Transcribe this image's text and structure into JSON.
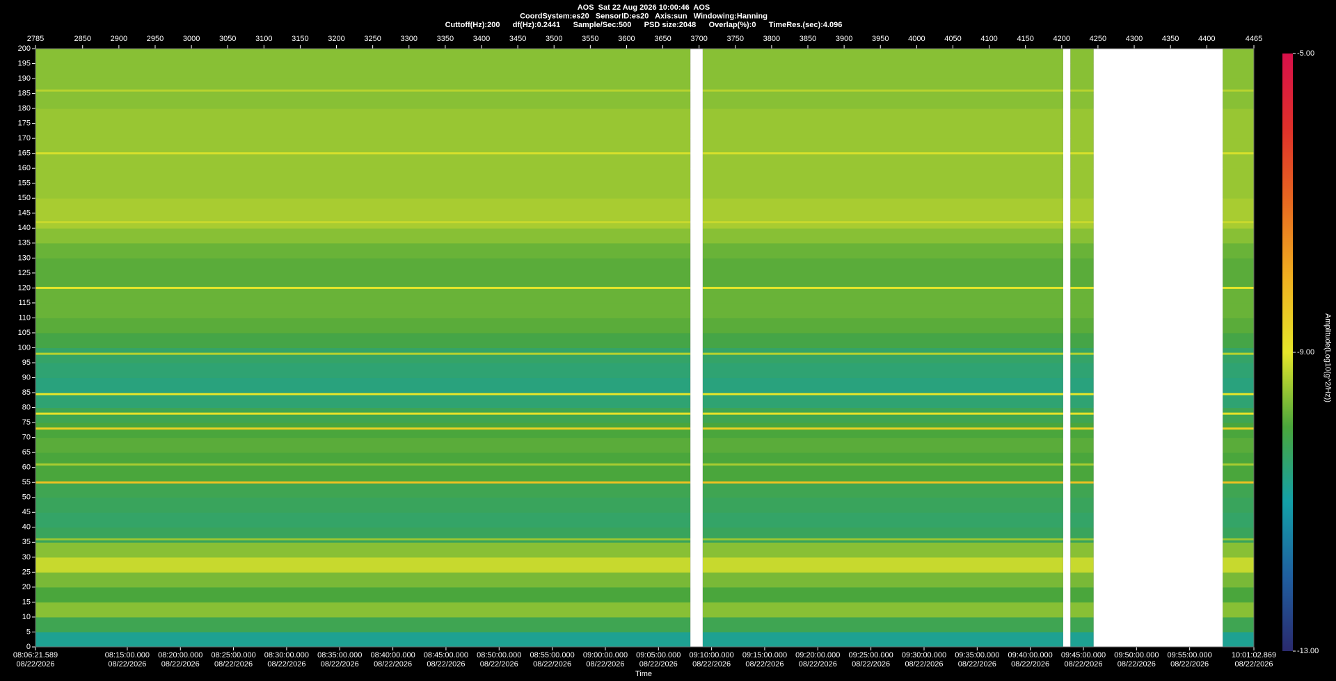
{
  "chart_data": {
    "type": "spectrogram",
    "header": [
      "AOS  Sat 22 Aug 2026 10:00:46  AOS",
      "CoordSystem:es20   SensorID:es20   Axis:sun   Windowing:Hanning",
      "Cuttoff(Hz):200      df(Hz):0.2441      Sample/Sec:500      PSD size:2048      Overlap(%):0      TimeRes.(sec):4.096"
    ],
    "xlabel": "Time",
    "colorbar_label": "Amplitude(Log10(g^2/Hz))",
    "xlim": [
      2785,
      4465
    ],
    "xticks": [
      2785,
      2850,
      2900,
      2950,
      3000,
      3050,
      3100,
      3150,
      3200,
      3250,
      3300,
      3350,
      3400,
      3450,
      3500,
      3550,
      3600,
      3650,
      3700,
      3750,
      3800,
      3850,
      3900,
      3950,
      4000,
      4050,
      4100,
      4150,
      4200,
      4250,
      4300,
      4350,
      4400,
      4465
    ],
    "time_ticks": [
      {
        "value": 2785,
        "label": "08:06:21.589",
        "date": "08/22/2026"
      },
      {
        "value": 2911.56,
        "label": "08:15:00.000",
        "date": "08/22/2026"
      },
      {
        "value": 2984.8,
        "label": "08:20:00.000",
        "date": "08/22/2026"
      },
      {
        "value": 3058.04,
        "label": "08:25:00.000",
        "date": "08/22/2026"
      },
      {
        "value": 3131.29,
        "label": "08:30:00.000",
        "date": "08/22/2026"
      },
      {
        "value": 3204.53,
        "label": "08:35:00.000",
        "date": "08/22/2026"
      },
      {
        "value": 3277.77,
        "label": "08:40:00.000",
        "date": "08/22/2026"
      },
      {
        "value": 3351.01,
        "label": "08:45:00.000",
        "date": "08/22/2026"
      },
      {
        "value": 3424.26,
        "label": "08:50:00.000",
        "date": "08/22/2026"
      },
      {
        "value": 3497.5,
        "label": "08:55:00.000",
        "date": "08/22/2026"
      },
      {
        "value": 3570.74,
        "label": "09:00:00.000",
        "date": "08/22/2026"
      },
      {
        "value": 3643.98,
        "label": "09:05:00.000",
        "date": "08/22/2026"
      },
      {
        "value": 3717.23,
        "label": "09:10:00.000",
        "date": "08/22/2026"
      },
      {
        "value": 3790.47,
        "label": "09:15:00.000",
        "date": "08/22/2026"
      },
      {
        "value": 3863.71,
        "label": "09:20:00.000",
        "date": "08/22/2026"
      },
      {
        "value": 3936.95,
        "label": "09:25:00.000",
        "date": "08/22/2026"
      },
      {
        "value": 4010.2,
        "label": "09:30:00.000",
        "date": "08/22/2026"
      },
      {
        "value": 4083.44,
        "label": "09:35:00.000",
        "date": "08/22/2026"
      },
      {
        "value": 4156.68,
        "label": "09:40:00.000",
        "date": "08/22/2026"
      },
      {
        "value": 4229.92,
        "label": "09:45:00.000",
        "date": "08/22/2026"
      },
      {
        "value": 4303.17,
        "label": "09:50:00.000",
        "date": "08/22/2026"
      },
      {
        "value": 4376.41,
        "label": "09:55:00.000",
        "date": "08/22/2026"
      },
      {
        "value": 4465,
        "label": "10:01:02.869",
        "date": "08/22/2026"
      }
    ],
    "ylim": [
      0,
      200
    ],
    "yticks": [
      0,
      5,
      10,
      15,
      20,
      25,
      30,
      35,
      40,
      45,
      50,
      55,
      60,
      65,
      70,
      75,
      80,
      85,
      90,
      95,
      100,
      105,
      110,
      115,
      120,
      125,
      130,
      135,
      140,
      145,
      150,
      155,
      160,
      165,
      170,
      175,
      180,
      185,
      190,
      195,
      200
    ],
    "freq_edges": [
      0,
      5,
      10,
      15,
      20,
      25,
      30,
      35,
      40,
      45,
      50,
      55,
      60,
      65,
      70,
      75,
      80,
      85,
      90,
      95,
      100,
      105,
      110,
      115,
      120,
      125,
      130,
      135,
      140,
      145,
      150,
      155,
      160,
      165,
      170,
      175,
      180,
      185,
      190,
      195,
      200
    ],
    "values": [
      -10.8,
      -10.2,
      -9.6,
      -10.0,
      -9.7,
      -9.2,
      -9.6,
      -10.3,
      -10.4,
      -10.3,
      -10.2,
      -10.0,
      -10.0,
      -9.9,
      -10.0,
      -10.2,
      -10.5,
      -10.6,
      -10.5,
      -10.4,
      -10.1,
      -9.9,
      -9.8,
      -9.8,
      -9.9,
      -9.9,
      -9.8,
      -9.6,
      -9.4,
      -9.4,
      -9.5,
      -9.5,
      -9.5,
      -9.5,
      -9.5,
      -9.5,
      -9.6,
      -9.6,
      -9.6,
      -9.6
    ],
    "lines": [
      {
        "freq": 36,
        "value": -9.5
      },
      {
        "freq": 55,
        "value": -8.3
      },
      {
        "freq": 61,
        "value": -9.4
      },
      {
        "freq": 73,
        "value": -8.6
      },
      {
        "freq": 78,
        "value": -8.9
      },
      {
        "freq": 84.5,
        "value": -9.0
      },
      {
        "freq": 98,
        "value": -9.3
      },
      {
        "freq": 120,
        "value": -9.0
      },
      {
        "freq": 142,
        "value": -9.2
      },
      {
        "freq": 165,
        "value": -9.1
      },
      {
        "freq": 186,
        "value": -9.3
      }
    ],
    "gaps": [
      [
        3688,
        3705
      ],
      [
        4202,
        4212
      ],
      [
        4244,
        4422
      ]
    ],
    "clim": [
      -13,
      -5
    ],
    "cticks": [
      {
        "value": -13,
        "label": "-13.00"
      },
      {
        "value": -9,
        "label": "-9.00"
      },
      {
        "value": -5,
        "label": "-5.00"
      }
    ],
    "colorscale": [
      "#2a2a6e",
      "#1f5fa0",
      "#13a0a8",
      "#4aa63c",
      "#e6e62a",
      "#f0b020",
      "#e86a20",
      "#e0302a",
      "#d8104a"
    ],
    "gap_color": "#ffffff"
  }
}
